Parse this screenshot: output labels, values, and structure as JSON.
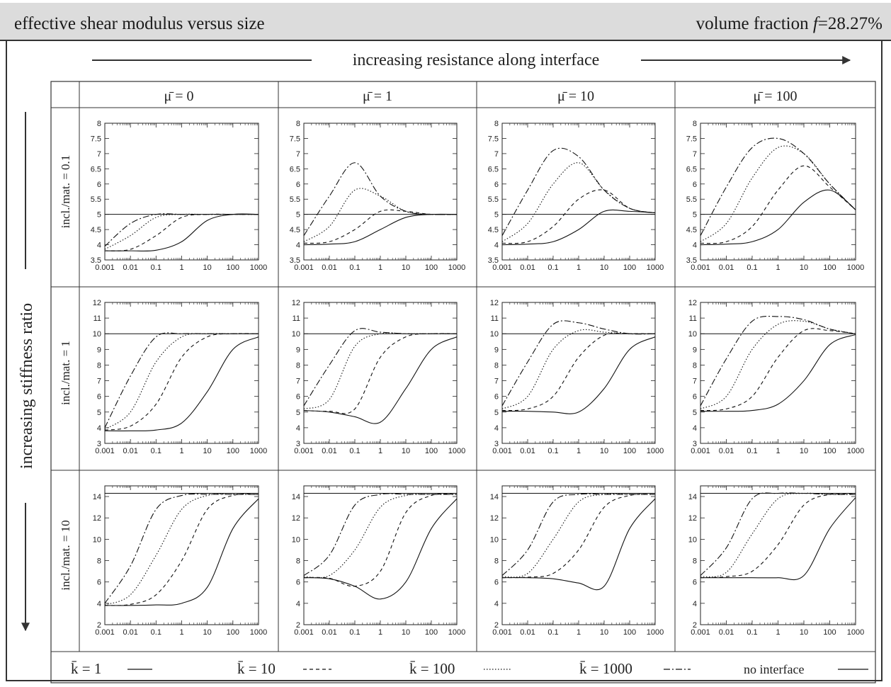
{
  "header": {
    "title": "effective shear modulus versus size",
    "volume_fraction_label": "volume fraction",
    "volume_fraction_symbol": "f",
    "volume_fraction_value": "=28.27%"
  },
  "top_arrow_label": "increasing resistance along interface",
  "side_arrow_label": "increasing stiffness ratio",
  "columns": [
    {
      "label": "μ̄ = 0",
      "mu": 0
    },
    {
      "label": "μ̄ = 1",
      "mu": 1
    },
    {
      "label": "μ̄ = 10",
      "mu": 10
    },
    {
      "label": "μ̄ = 100",
      "mu": 100
    }
  ],
  "rows": [
    {
      "label": "incl./mat. = 0.1",
      "ylim": [
        3.5,
        8
      ],
      "yticks": [
        "3.5",
        "4",
        "4.5",
        "5",
        "5.5",
        "6",
        "6.5",
        "7",
        "7.5",
        "8"
      ]
    },
    {
      "label": "incl./mat. = 1",
      "ylim": [
        3,
        12
      ],
      "yticks": [
        "3",
        "4",
        "5",
        "6",
        "7",
        "8",
        "9",
        "10",
        "11",
        "12"
      ]
    },
    {
      "label": "incl./mat. = 10",
      "ylim": [
        2,
        15
      ],
      "yticks": [
        "2",
        "4",
        "6",
        "8",
        "10",
        "12",
        "14"
      ]
    }
  ],
  "x_ticks": [
    "0.001",
    "0.01",
    "0.1",
    "1",
    "10",
    "100",
    "1000"
  ],
  "legend": [
    {
      "label": "k̄ = 1",
      "style": "solid"
    },
    {
      "label": "k̄ = 10",
      "style": "dashed"
    },
    {
      "label": "k̄ = 100",
      "style": "dotted"
    },
    {
      "label": "k̄ = 1000",
      "style": "dashdot"
    },
    {
      "label": "no interface",
      "style": "solid"
    }
  ],
  "chart_data": {
    "type": "line",
    "x_scale": "log",
    "xlim": [
      0.001,
      1000
    ],
    "x_sample": [
      0.001,
      0.01,
      0.1,
      1,
      10,
      100,
      1000
    ],
    "panels": [
      {
        "row": 0,
        "col": 0,
        "no_interface": 5.0,
        "series": [
          {
            "name": "k̄ = 1",
            "values": [
              3.8,
              3.8,
              3.82,
              4.1,
              4.8,
              5.0,
              5.0
            ]
          },
          {
            "name": "k̄ = 10",
            "values": [
              3.8,
              3.85,
              4.3,
              4.9,
              5.0,
              5.0,
              5.0
            ]
          },
          {
            "name": "k̄ = 100",
            "values": [
              3.85,
              4.3,
              4.9,
              5.0,
              5.0,
              5.0,
              5.0
            ]
          },
          {
            "name": "k̄ = 1000",
            "values": [
              3.95,
              4.7,
              5.0,
              5.0,
              5.0,
              5.0,
              5.0
            ]
          }
        ]
      },
      {
        "row": 0,
        "col": 1,
        "no_interface": 5.0,
        "series": [
          {
            "name": "k̄ = 1",
            "values": [
              4.0,
              4.02,
              4.1,
              4.5,
              4.9,
              5.0,
              5.0
            ]
          },
          {
            "name": "k̄ = 10",
            "values": [
              4.05,
              4.1,
              4.5,
              5.1,
              5.1,
              5.0,
              5.0
            ]
          },
          {
            "name": "k̄ = 100",
            "values": [
              4.1,
              4.6,
              5.8,
              5.6,
              5.1,
              5.0,
              5.0
            ]
          },
          {
            "name": "k̄ = 1000",
            "values": [
              4.3,
              5.6,
              6.7,
              5.6,
              5.1,
              5.0,
              5.0
            ]
          }
        ]
      },
      {
        "row": 0,
        "col": 2,
        "no_interface": 5.0,
        "series": [
          {
            "name": "k̄ = 1",
            "values": [
              4.0,
              4.02,
              4.1,
              4.5,
              5.1,
              5.1,
              5.05
            ]
          },
          {
            "name": "k̄ = 10",
            "values": [
              4.05,
              4.1,
              4.6,
              5.5,
              5.8,
              5.2,
              5.05
            ]
          },
          {
            "name": "k̄ = 100",
            "values": [
              4.1,
              4.7,
              6.0,
              6.7,
              5.8,
              5.2,
              5.05
            ]
          },
          {
            "name": "k̄ = 1000",
            "values": [
              4.3,
              5.8,
              7.1,
              6.9,
              5.8,
              5.2,
              5.05
            ]
          }
        ]
      },
      {
        "row": 0,
        "col": 3,
        "no_interface": 5.0,
        "series": [
          {
            "name": "k̄ = 1",
            "values": [
              4.0,
              4.02,
              4.1,
              4.5,
              5.4,
              5.8,
              5.15
            ]
          },
          {
            "name": "k̄ = 10",
            "values": [
              4.05,
              4.1,
              4.6,
              5.8,
              6.6,
              5.9,
              5.15
            ]
          },
          {
            "name": "k̄ = 100",
            "values": [
              4.1,
              4.7,
              6.2,
              7.2,
              7.0,
              6.0,
              5.15
            ]
          },
          {
            "name": "k̄ = 1000",
            "values": [
              4.3,
              5.9,
              7.2,
              7.5,
              7.0,
              6.0,
              5.15
            ]
          }
        ]
      },
      {
        "row": 1,
        "col": 0,
        "no_interface": 10.0,
        "series": [
          {
            "name": "k̄ = 1",
            "values": [
              3.8,
              3.8,
              3.85,
              4.3,
              6.3,
              9.0,
              9.8
            ]
          },
          {
            "name": "k̄ = 10",
            "values": [
              3.85,
              4.1,
              5.5,
              8.5,
              9.8,
              10.0,
              10.0
            ]
          },
          {
            "name": "k̄ = 100",
            "values": [
              3.9,
              5.0,
              8.2,
              9.8,
              10.0,
              10.0,
              10.0
            ]
          },
          {
            "name": "k̄ = 1000",
            "values": [
              4.0,
              7.3,
              9.8,
              10.0,
              10.0,
              10.0,
              10.0
            ]
          }
        ]
      },
      {
        "row": 1,
        "col": 1,
        "no_interface": 10.0,
        "series": [
          {
            "name": "k̄ = 1",
            "values": [
              5.1,
              5.0,
              4.7,
              4.35,
              6.5,
              9.0,
              9.8
            ]
          },
          {
            "name": "k̄ = 10",
            "values": [
              5.1,
              5.05,
              5.2,
              8.5,
              9.8,
              10.0,
              10.0
            ]
          },
          {
            "name": "k̄ = 100",
            "values": [
              5.2,
              5.8,
              9.2,
              10.0,
              10.0,
              10.0,
              10.0
            ]
          },
          {
            "name": "k̄ = 1000",
            "values": [
              5.4,
              8.0,
              10.2,
              10.1,
              10.0,
              10.0,
              10.0
            ]
          }
        ]
      },
      {
        "row": 1,
        "col": 2,
        "no_interface": 10.0,
        "series": [
          {
            "name": "k̄ = 1",
            "values": [
              5.05,
              5.05,
              5.0,
              5.0,
              6.5,
              9.0,
              9.8
            ]
          },
          {
            "name": "k̄ = 10",
            "values": [
              5.1,
              5.2,
              6.0,
              8.5,
              9.9,
              10.0,
              10.0
            ]
          },
          {
            "name": "k̄ = 100",
            "values": [
              5.2,
              6.0,
              9.0,
              10.2,
              10.1,
              10.0,
              10.0
            ]
          },
          {
            "name": "k̄ = 1000",
            "values": [
              5.4,
              8.2,
              10.6,
              10.7,
              10.3,
              10.0,
              10.0
            ]
          }
        ]
      },
      {
        "row": 1,
        "col": 3,
        "no_interface": 10.0,
        "series": [
          {
            "name": "k̄ = 1",
            "values": [
              5.05,
              5.05,
              5.1,
              5.5,
              7.0,
              9.3,
              9.95
            ]
          },
          {
            "name": "k̄ = 10",
            "values": [
              5.1,
              5.2,
              6.0,
              8.5,
              10.2,
              10.2,
              10.0
            ]
          },
          {
            "name": "k̄ = 100",
            "values": [
              5.2,
              6.0,
              9.0,
              10.6,
              10.8,
              10.3,
              10.0
            ]
          },
          {
            "name": "k̄ = 1000",
            "values": [
              5.4,
              8.4,
              10.8,
              11.1,
              10.9,
              10.3,
              10.0
            ]
          }
        ]
      },
      {
        "row": 2,
        "col": 0,
        "no_interface": 14.3,
        "series": [
          {
            "name": "k̄ = 1",
            "values": [
              3.8,
              3.8,
              3.85,
              4.0,
              5.5,
              11.0,
              13.8
            ]
          },
          {
            "name": "k̄ = 10",
            "values": [
              3.8,
              3.9,
              4.8,
              8.0,
              12.8,
              14.1,
              14.2
            ]
          },
          {
            "name": "k̄ = 100",
            "values": [
              3.85,
              4.8,
              8.5,
              12.8,
              14.1,
              14.2,
              14.2
            ]
          },
          {
            "name": "k̄ = 1000",
            "values": [
              4.0,
              7.5,
              12.8,
              14.1,
              14.2,
              14.2,
              14.2
            ]
          }
        ]
      },
      {
        "row": 2,
        "col": 1,
        "no_interface": 14.3,
        "series": [
          {
            "name": "k̄ = 1",
            "values": [
              6.4,
              6.3,
              5.6,
              4.4,
              6.0,
              11.0,
              13.8
            ]
          },
          {
            "name": "k̄ = 10",
            "values": [
              6.4,
              6.35,
              5.6,
              7.0,
              12.5,
              14.1,
              14.2
            ]
          },
          {
            "name": "k̄ = 100",
            "values": [
              6.5,
              6.6,
              9.0,
              13.0,
              14.1,
              14.2,
              14.2
            ]
          },
          {
            "name": "k̄ = 1000",
            "values": [
              6.6,
              8.5,
              13.2,
              14.2,
              14.2,
              14.2,
              14.2
            ]
          }
        ]
      },
      {
        "row": 2,
        "col": 2,
        "no_interface": 14.3,
        "series": [
          {
            "name": "k̄ = 1",
            "values": [
              6.4,
              6.4,
              6.3,
              5.9,
              5.6,
              11.0,
              13.8
            ]
          },
          {
            "name": "k̄ = 10",
            "values": [
              6.4,
              6.45,
              6.8,
              9.0,
              13.0,
              14.1,
              14.2
            ]
          },
          {
            "name": "k̄ = 100",
            "values": [
              6.5,
              6.8,
              10.0,
              13.5,
              14.2,
              14.2,
              14.2
            ]
          },
          {
            "name": "k̄ = 1000",
            "values": [
              6.6,
              9.0,
              13.5,
              14.2,
              14.2,
              14.2,
              14.2
            ]
          }
        ]
      },
      {
        "row": 2,
        "col": 3,
        "no_interface": 14.3,
        "series": [
          {
            "name": "k̄ = 1",
            "values": [
              6.4,
              6.4,
              6.4,
              6.4,
              6.6,
              11.0,
              13.9
            ]
          },
          {
            "name": "k̄ = 10",
            "values": [
              6.4,
              6.5,
              7.0,
              9.5,
              13.2,
              14.2,
              14.2
            ]
          },
          {
            "name": "k̄ = 100",
            "values": [
              6.5,
              6.9,
              10.5,
              13.8,
              14.3,
              14.2,
              14.2
            ]
          },
          {
            "name": "k̄ = 1000",
            "values": [
              6.6,
              9.2,
              13.8,
              14.3,
              14.3,
              14.2,
              14.2
            ]
          }
        ]
      }
    ]
  }
}
